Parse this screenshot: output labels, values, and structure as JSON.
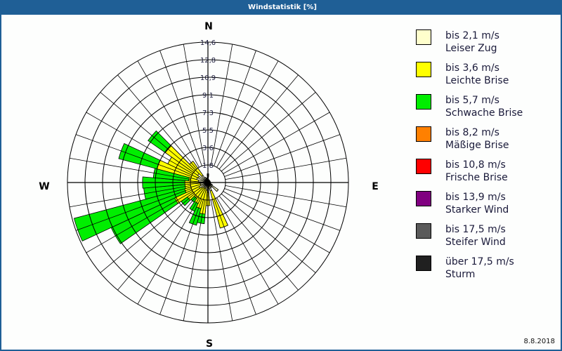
{
  "window": {
    "title": "Windstatistik [%]"
  },
  "footer": {
    "date": "8.8.2018"
  },
  "compass": {
    "N": "N",
    "E": "E",
    "S": "S",
    "W": "W"
  },
  "colors": {
    "titlebar": "#1f5f96",
    "grid": "#000000"
  },
  "legend": [
    {
      "speed": "bis 2,1 m/s",
      "name": "Leiser Zug",
      "color": "#ffffcc"
    },
    {
      "speed": "bis 3,6 m/s",
      "name": "Leichte Brise",
      "color": "#ffff00"
    },
    {
      "speed": "bis 5,7 m/s",
      "name": "Schwache Brise",
      "color": "#00ee00"
    },
    {
      "speed": "bis 8,2 m/s",
      "name": "Mäßige Brise",
      "color": "#ff8000"
    },
    {
      "speed": "bis 10,8 m/s",
      "name": "Frische Brise",
      "color": "#ff0000"
    },
    {
      "speed": "bis 13,9 m/s",
      "name": "Starker Wind",
      "color": "#800080"
    },
    {
      "speed": "bis 17,5 m/s",
      "name": "Steifer Wind",
      "color": "#5a5a5a"
    },
    {
      "speed": "über 17,5 m/s",
      "name": "Sturm",
      "color": "#202020"
    }
  ],
  "chart_data": {
    "type": "polar-bar (wind rose)",
    "title": "Windstatistik [%]",
    "unit": "%",
    "radial_ticks": [
      "1,8",
      "3,6",
      "5,5",
      "7,3",
      "9,1",
      "10,9",
      "12,8",
      "14,6"
    ],
    "radial_max": 14.6,
    "sector_width_deg": 10,
    "directions_deg": [
      0,
      10,
      20,
      30,
      40,
      50,
      60,
      70,
      80,
      90,
      100,
      110,
      120,
      130,
      140,
      150,
      160,
      170,
      180,
      190,
      200,
      210,
      220,
      230,
      240,
      250,
      260,
      270,
      280,
      290,
      300,
      310,
      320,
      330,
      340,
      350
    ],
    "series": [
      {
        "name": "bis 2,1 m/s",
        "cumulative_values": [
          0.9,
          0.2,
          0.3,
          0.2,
          0.1,
          0.1,
          0.1,
          0.1,
          0.1,
          0.1,
          0.1,
          0.3,
          0.5,
          1.3,
          0.6,
          0.6,
          0.9,
          0.4,
          1.0,
          0.8,
          0.6,
          0.7,
          0.6,
          0.8,
          1.0,
          0.8,
          0.8,
          0.9,
          1.0,
          1.2,
          1.1,
          1.3,
          0.9,
          0.6,
          0.4,
          0.5
        ]
      },
      {
        "name": "bis 3,6 m/s",
        "cumulative_values": [
          0.9,
          0.2,
          0.3,
          0.2,
          0.1,
          0.1,
          0.1,
          0.1,
          0.1,
          0.1,
          0.1,
          0.3,
          0.5,
          1.3,
          0.6,
          0.6,
          4.9,
          0.6,
          2.4,
          3.3,
          2.8,
          2.4,
          2.0,
          2.6,
          3.8,
          2.5,
          2.4,
          2.4,
          2.0,
          5.5,
          4.6,
          5.4,
          2.7,
          0.6,
          0.4,
          0.5
        ]
      },
      {
        "name": "bis 5,7 m/s",
        "cumulative_values": [
          0.9,
          0.2,
          0.3,
          0.2,
          0.1,
          0.1,
          0.1,
          0.1,
          0.1,
          0.1,
          0.1,
          0.3,
          0.5,
          1.3,
          0.6,
          0.6,
          4.9,
          0.6,
          2.4,
          4.3,
          4.6,
          3.3,
          2.5,
          3.4,
          11.1,
          14.4,
          6.7,
          6.8,
          5.7,
          9.6,
          4.6,
          7.6,
          2.7,
          0.6,
          0.4,
          0.5
        ]
      }
    ]
  }
}
